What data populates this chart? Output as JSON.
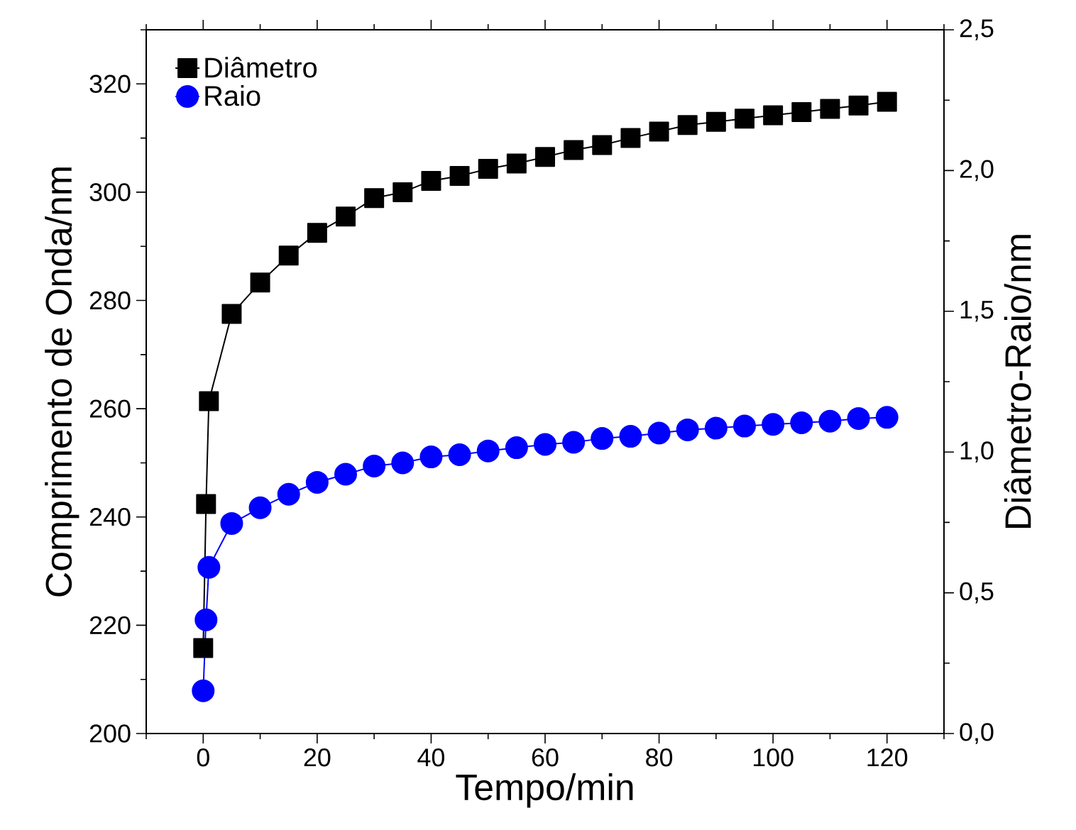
{
  "chart_data": {
    "type": "line",
    "xlabel": "Tempo/min",
    "ylabel": "Comprimento de Onda/nm",
    "y2label": "Diâmetro-Raio/nm",
    "x": [
      0,
      0.5,
      1,
      5,
      10,
      15,
      20,
      25,
      30,
      35,
      40,
      45,
      50,
      55,
      60,
      65,
      70,
      75,
      80,
      85,
      90,
      95,
      100,
      105,
      110,
      115,
      120
    ],
    "series": [
      {
        "name": "Diâmetro",
        "color": "#000000",
        "marker": "square",
        "values": [
          215.8,
          242.4,
          261.4,
          277.5,
          283.3,
          288.3,
          292.5,
          295.5,
          298.9,
          300.0,
          302.1,
          303.0,
          304.3,
          305.3,
          306.5,
          307.8,
          308.7,
          310.0,
          311.2,
          312.4,
          313.0,
          313.6,
          314.2,
          314.8,
          315.4,
          316.0,
          316.7
        ]
      },
      {
        "name": "Raio",
        "color": "#0000ff",
        "marker": "circle",
        "values": [
          207.9,
          221.0,
          230.7,
          238.8,
          241.7,
          244.2,
          246.4,
          247.9,
          249.4,
          250.0,
          251.1,
          251.5,
          252.2,
          252.8,
          253.4,
          253.8,
          254.5,
          254.9,
          255.5,
          256.1,
          256.4,
          256.8,
          257.1,
          257.4,
          257.7,
          258.2,
          258.4
        ]
      }
    ],
    "xlim": [
      -10,
      130
    ],
    "xticks": [
      0,
      20,
      40,
      60,
      80,
      100,
      120
    ],
    "ylim": [
      200,
      330
    ],
    "yticks": [
      200,
      220,
      240,
      260,
      280,
      300,
      320
    ],
    "y2lim": [
      0,
      2.5
    ],
    "y2ticks": [
      {
        "value": 0,
        "label": "0,0"
      },
      {
        "value": 0.5,
        "label": "0,5"
      },
      {
        "value": 1,
        "label": "1,0"
      },
      {
        "value": 1.5,
        "label": "1,5"
      },
      {
        "value": 2,
        "label": "2,0"
      },
      {
        "value": 2.5,
        "label": "2,5"
      }
    ],
    "legend": "top left",
    "grid": false,
    "line_style": "solid"
  }
}
